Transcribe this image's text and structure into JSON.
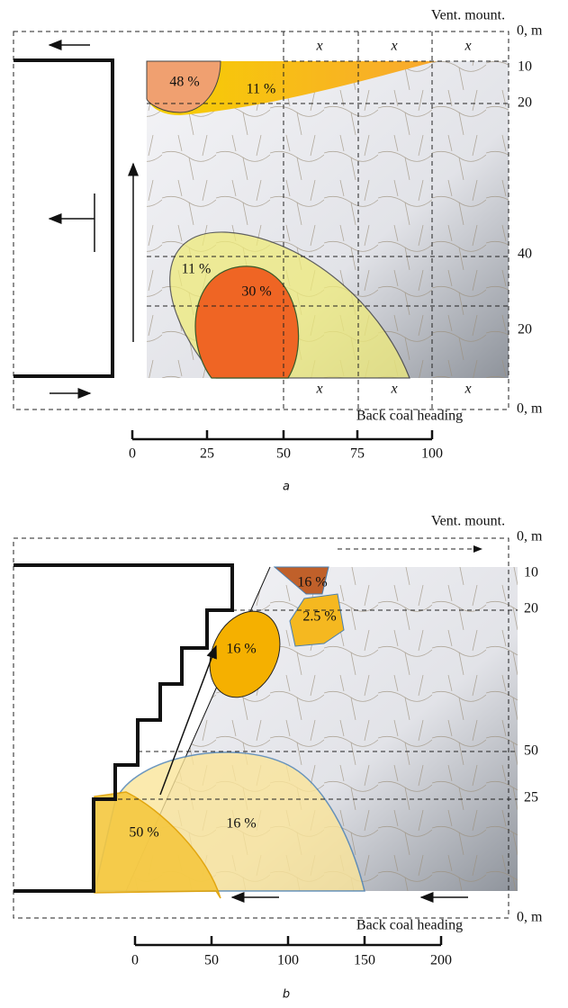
{
  "panels": [
    {
      "header": "Vent. mount.",
      "depth_labels": [
        "0, m",
        "10",
        "20",
        "40",
        "20",
        "0, m"
      ],
      "x_marks": [
        "x",
        "x",
        "x",
        "x",
        "x",
        "x"
      ],
      "zones": [
        "48 %",
        "11 %",
        "11 %",
        "30 %"
      ],
      "footer": "Back coal heading",
      "scale": [
        "0",
        "25",
        "50",
        "75",
        "100"
      ],
      "caption": "a"
    },
    {
      "header": "Vent. mount.",
      "depth_labels": [
        "0, m",
        "10",
        "20",
        "50",
        "25",
        "0, m"
      ],
      "zones": [
        "16 %",
        "2.5 %",
        "16 %",
        "50 %",
        "16 %"
      ],
      "footer": "Back coal heading",
      "scale": [
        "0",
        "50",
        "100",
        "150",
        "200"
      ],
      "caption": "b"
    }
  ]
}
